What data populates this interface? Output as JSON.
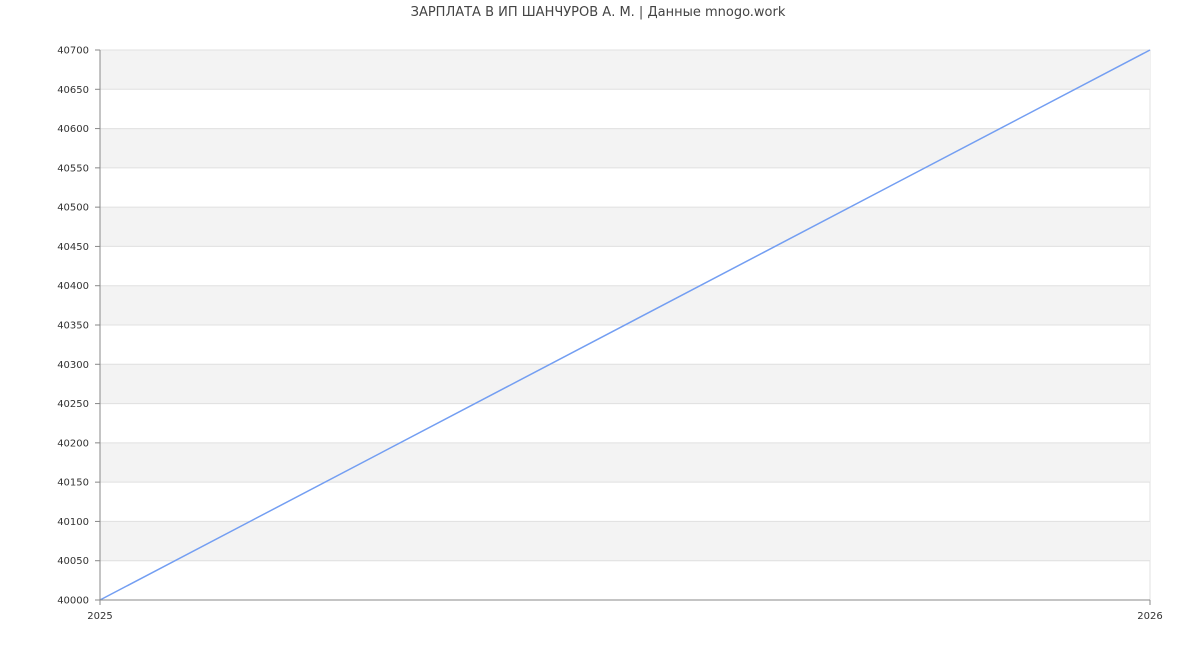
{
  "chart_data": {
    "type": "line",
    "title": "ЗАРПЛАТА В ИП ШАНЧУРОВ А. М. | Данные mnogo.work",
    "xlabel": "",
    "ylabel": "",
    "x_ticks": [
      "2025",
      "2026"
    ],
    "y_ticks": [
      40000,
      40050,
      40100,
      40150,
      40200,
      40250,
      40300,
      40350,
      40400,
      40450,
      40500,
      40550,
      40600,
      40650,
      40700
    ],
    "xlim": [
      2025,
      2026
    ],
    "ylim": [
      40000,
      40700
    ],
    "grid": true,
    "series": [
      {
        "x": [
          2025,
          2026
        ],
        "values": [
          40000,
          40700
        ],
        "color": "#739ef2"
      }
    ],
    "band_color": "#f3f3f3",
    "grid_color": "#e0e0e0",
    "axis_color": "#888888"
  }
}
